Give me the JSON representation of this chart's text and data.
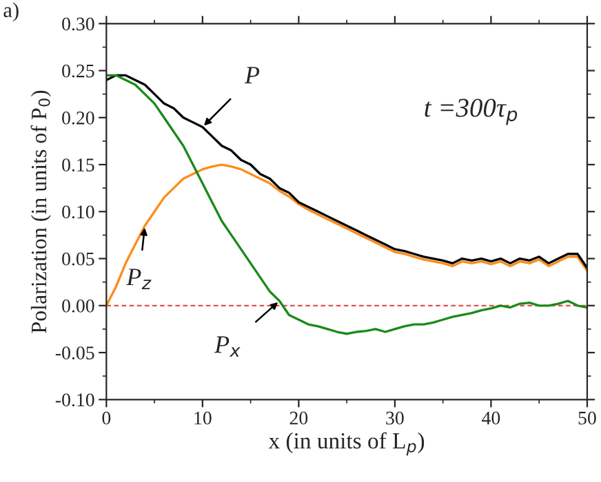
{
  "chart_data": {
    "type": "line",
    "xlabel": "x (in units of L$_{p}$)",
    "ylabel": "Polarization (in units of P$_{0}$)",
    "x": [
      0,
      1,
      2,
      3,
      4,
      5,
      6,
      7,
      8,
      9,
      10,
      11,
      12,
      13,
      14,
      15,
      16,
      17,
      18,
      19,
      20,
      21,
      22,
      23,
      24,
      25,
      26,
      27,
      28,
      29,
      30,
      31,
      32,
      33,
      34,
      35,
      36,
      37,
      38,
      39,
      40,
      41,
      42,
      43,
      44,
      45,
      46,
      47,
      48,
      49,
      50
    ],
    "series": [
      {
        "color": "#ff8c1a",
        "values": [
          0.0,
          0.02,
          0.045,
          0.065,
          0.085,
          0.1,
          0.115,
          0.125,
          0.135,
          0.14,
          0.145,
          0.148,
          0.15,
          0.148,
          0.145,
          0.14,
          0.135,
          0.13,
          0.122,
          0.116,
          0.108,
          0.102,
          0.097,
          0.092,
          0.087,
          0.082,
          0.077,
          0.072,
          0.067,
          0.062,
          0.057,
          0.055,
          0.052,
          0.049,
          0.047,
          0.045,
          0.042,
          0.047,
          0.045,
          0.047,
          0.044,
          0.047,
          0.042,
          0.047,
          0.045,
          0.049,
          0.042,
          0.047,
          0.052,
          0.052,
          0.037
        ]
      },
      {
        "color": "#000000",
        "values": [
          0.24,
          0.245,
          0.245,
          0.24,
          0.235,
          0.225,
          0.215,
          0.21,
          0.2,
          0.195,
          0.19,
          0.18,
          0.17,
          0.165,
          0.155,
          0.15,
          0.14,
          0.135,
          0.125,
          0.12,
          0.11,
          0.105,
          0.1,
          0.095,
          0.09,
          0.085,
          0.08,
          0.075,
          0.07,
          0.065,
          0.06,
          0.058,
          0.055,
          0.052,
          0.05,
          0.048,
          0.045,
          0.05,
          0.048,
          0.05,
          0.047,
          0.05,
          0.045,
          0.05,
          0.048,
          0.052,
          0.045,
          0.05,
          0.055,
          0.055,
          0.04
        ]
      },
      {
        "color": "#1a8a1a",
        "values": [
          0.245,
          0.245,
          0.24,
          0.235,
          0.225,
          0.215,
          0.2,
          0.185,
          0.17,
          0.15,
          0.13,
          0.11,
          0.09,
          0.075,
          0.06,
          0.045,
          0.03,
          0.015,
          0.005,
          -0.01,
          -0.015,
          -0.02,
          -0.022,
          -0.025,
          -0.028,
          -0.03,
          -0.028,
          -0.027,
          -0.025,
          -0.028,
          -0.025,
          -0.022,
          -0.02,
          -0.02,
          -0.018,
          -0.015,
          -0.012,
          -0.01,
          -0.008,
          -0.005,
          -0.003,
          0.0,
          -0.002,
          0.002,
          0.003,
          0.0,
          0.0,
          0.002,
          0.005,
          0.0,
          -0.002
        ]
      }
    ],
    "xlim": [
      0,
      50
    ],
    "xticks": [
      0,
      10,
      20,
      30,
      40,
      50
    ],
    "ylim": [
      -0.1,
      0.3
    ],
    "yticks": [
      {
        "value": -0.1,
        "label": "-0.10"
      },
      {
        "value": -0.05,
        "label": "-0.05"
      },
      {
        "value": 0,
        "label": "0.00"
      },
      {
        "value": 0.05,
        "label": "0.05"
      },
      {
        "value": 0.1,
        "label": "0.10"
      },
      {
        "value": 0.15,
        "label": "0.15"
      },
      {
        "value": 0.2,
        "label": "0.20"
      },
      {
        "value": 0.25,
        "label": "0.25"
      },
      {
        "value": 0.3,
        "label": "0.30"
      }
    ],
    "ref_lines": [
      {
        "axis": "y",
        "value": 0,
        "color": "#e05050",
        "line_style": "dashed"
      }
    ],
    "annotations": [
      {
        "text": "P",
        "x": 10,
        "y": 0.19
      },
      {
        "text": "P$_{z}$",
        "x": 4,
        "y": 0.085
      },
      {
        "text": "P$_{x}$",
        "x": 18,
        "y": 0.005
      },
      "t =300τ$_{p}$",
      "a)"
    ],
    "grid": false,
    "legend": false
  }
}
